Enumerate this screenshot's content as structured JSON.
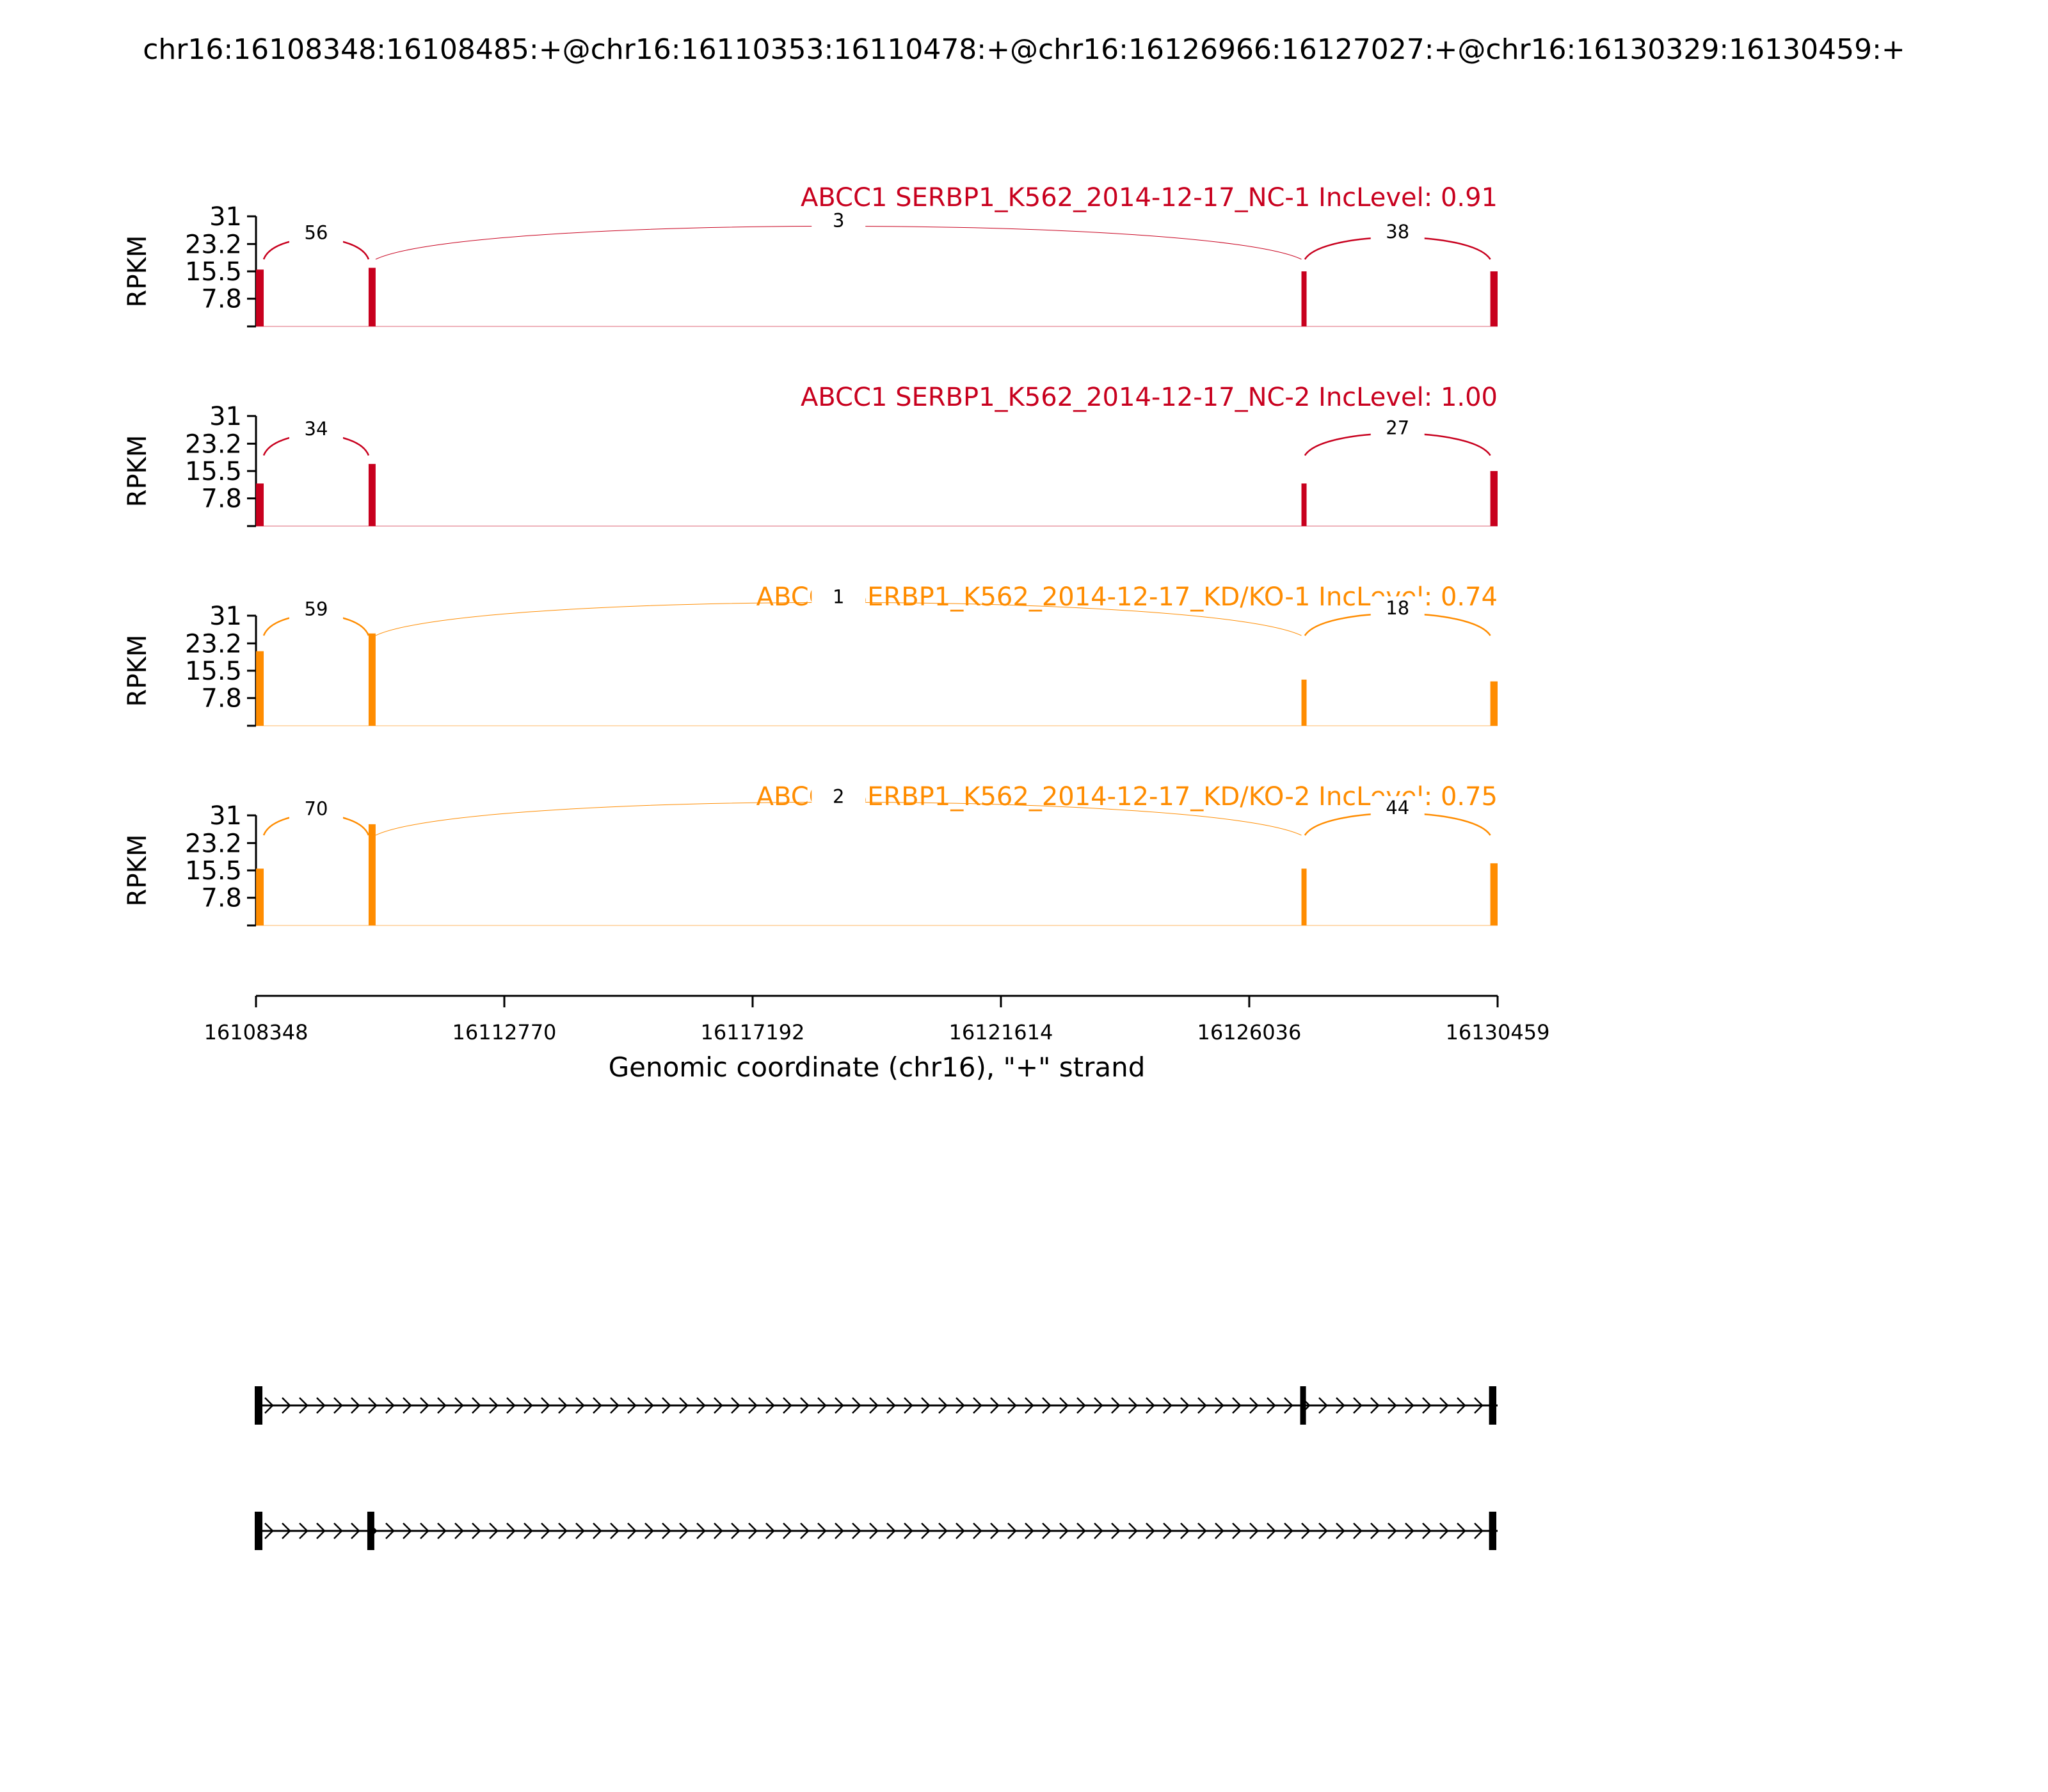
{
  "chart_data": {
    "type": "sashimi",
    "title": "chr16:16108348:16108485:+@chr16:16110353:16110478:+@chr16:16126966:16127027:+@chr16:16130329:16130459:+",
    "xlabel": "Genomic coordinate (chr16), \"+\" strand",
    "ylabel": "RPKM",
    "xlim": [
      16108348,
      16130459
    ],
    "x_ticks": [
      "16108348",
      "16112770",
      "16117192",
      "16121614",
      "16126036",
      "16130459"
    ],
    "ylim": [
      0,
      31
    ],
    "y_ticks": [
      "31",
      "23.2",
      "15.5",
      "7.8"
    ],
    "exons": [
      [
        16108348,
        16108485
      ],
      [
        16110353,
        16110478
      ],
      [
        16126966,
        16127027
      ],
      [
        16130329,
        16130459
      ]
    ],
    "colors": {
      "NC": "#c8001e",
      "KD": "#ff8c00"
    },
    "tracks": [
      {
        "name": "ABCC1 SERBP1_K562_2014-12-17_NC-1 IncLevel: 0.91",
        "group": "NC",
        "exon_coverage": [
          16,
          16.5,
          15.5,
          15.5
        ],
        "junctions": [
          {
            "from": 16108485,
            "to": 16110353,
            "count": "56",
            "above": true
          },
          {
            "from": 16110478,
            "to": 16126966,
            "count": "3",
            "above": true
          },
          {
            "from": 16127027,
            "to": 16130329,
            "count": "38",
            "above": true
          }
        ]
      },
      {
        "name": "ABCC1 SERBP1_K562_2014-12-17_NC-2 IncLevel: 1.00",
        "group": "NC",
        "exon_coverage": [
          12,
          17.5,
          12,
          15.5
        ],
        "junctions": [
          {
            "from": 16108485,
            "to": 16110353,
            "count": "34",
            "above": true
          },
          {
            "from": 16127027,
            "to": 16130329,
            "count": "27",
            "above": true
          }
        ]
      },
      {
        "name": "ABCC1 SERBP1_K562_2014-12-17_KD/KO-1 IncLevel: 0.74",
        "group": "KD",
        "exon_coverage": [
          21,
          26,
          13,
          12.5
        ],
        "junctions": [
          {
            "from": 16108485,
            "to": 16110353,
            "count": "59",
            "above": true
          },
          {
            "from": 16110478,
            "to": 16126966,
            "count": "1",
            "above": true
          },
          {
            "from": 16127027,
            "to": 16130329,
            "count": "18",
            "above": true
          }
        ]
      },
      {
        "name": "ABCC1 SERBP1_K562_2014-12-17_KD/KO-2 IncLevel: 0.75",
        "group": "KD",
        "exon_coverage": [
          16,
          28.5,
          16,
          17.5
        ],
        "junctions": [
          {
            "from": 16108485,
            "to": 16110353,
            "count": "70",
            "above": true
          },
          {
            "from": 16110478,
            "to": 16126966,
            "count": "2",
            "above": true
          },
          {
            "from": 16127027,
            "to": 16130329,
            "count": "44",
            "above": true
          }
        ]
      }
    ],
    "isoforms": [
      {
        "exons": [
          [
            16108348,
            16108485
          ],
          [
            16126966,
            16127027
          ],
          [
            16130329,
            16130459
          ]
        ]
      },
      {
        "exons": [
          [
            16108348,
            16108485
          ],
          [
            16110353,
            16110478
          ],
          [
            16130329,
            16130459
          ]
        ]
      }
    ]
  }
}
